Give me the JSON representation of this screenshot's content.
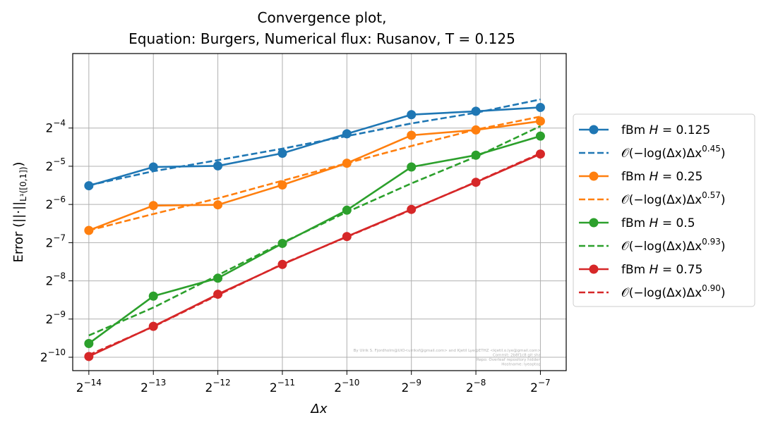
{
  "chart_data": {
    "type": "line",
    "title_line1": "Convergence plot,",
    "title_line2": "Equation: Burgers, Numerical flux: Rusanov, T = 0.125",
    "xlabel": "Δx",
    "ylabel": "Error (||·||",
    "ylabel_sub": "L¹([0,1])",
    "ylabel_close": ")",
    "xscale": "log2",
    "yscale": "log2",
    "xlim_log2": [
      -14.25,
      -6.6
    ],
    "ylim_log2": [
      -10.35,
      -2.05
    ],
    "x_ticks": [
      {
        "base": "2",
        "exp": "−14",
        "log2": -14
      },
      {
        "base": "2",
        "exp": "−13",
        "log2": -13
      },
      {
        "base": "2",
        "exp": "−12",
        "log2": -12
      },
      {
        "base": "2",
        "exp": "−11",
        "log2": -11
      },
      {
        "base": "2",
        "exp": "−10",
        "log2": -10
      },
      {
        "base": "2",
        "exp": "−9",
        "log2": -9
      },
      {
        "base": "2",
        "exp": "−8",
        "log2": -8
      },
      {
        "base": "2",
        "exp": "−7",
        "log2": -7
      }
    ],
    "y_ticks": [
      {
        "base": "2",
        "exp": "−4",
        "log2": -4
      },
      {
        "base": "2",
        "exp": "−5",
        "log2": -5
      },
      {
        "base": "2",
        "exp": "−6",
        "log2": -6
      },
      {
        "base": "2",
        "exp": "−7",
        "log2": -7
      },
      {
        "base": "2",
        "exp": "−8",
        "log2": -8
      },
      {
        "base": "2",
        "exp": "−9",
        "log2": -9
      },
      {
        "base": "2",
        "exp": "−10",
        "log2": -10
      }
    ],
    "x_log2": [
      -14,
      -13,
      -12,
      -11,
      -10,
      -9,
      -8,
      -7
    ],
    "grid": true,
    "legend_position": "outside-right",
    "series": [
      {
        "name": "fBm H = 0.125",
        "legend_prefix": "fBm ",
        "legend_var": "H",
        "legend_value": " = 0.125",
        "color": "#1f77b4",
        "log2_error": [
          -5.51,
          -5.02,
          -4.99,
          -4.66,
          -4.15,
          -3.65,
          -3.56,
          -3.46
        ],
        "fit_log2": [
          -5.5,
          -5.13,
          -4.84,
          -4.54,
          -4.21,
          -3.88,
          -3.6,
          -3.25
        ],
        "fit_label_prefix": "𝒪(−log(Δx)Δx",
        "fit_label_exp": "0.45",
        "fit_label_suffix": ")"
      },
      {
        "name": "fBm H = 0.25",
        "legend_prefix": "fBm ",
        "legend_var": "H",
        "legend_value": " = 0.25",
        "color": "#ff7f0e",
        "log2_error": [
          -6.68,
          -6.03,
          -6.01,
          -5.49,
          -4.92,
          -4.19,
          -4.05,
          -3.82
        ],
        "fit_log2": [
          -6.68,
          -6.25,
          -5.84,
          -5.38,
          -4.92,
          -4.47,
          -4.04,
          -3.7
        ],
        "fit_label_prefix": "𝒪(−log(Δx)Δx",
        "fit_label_exp": "0.57",
        "fit_label_suffix": ")"
      },
      {
        "name": "fBm H = 0.5",
        "legend_prefix": "fBm ",
        "legend_var": "H",
        "legend_value": " = 0.5",
        "color": "#2ca02c",
        "log2_error": [
          -9.64,
          -8.4,
          -7.93,
          -7.02,
          -6.15,
          -5.02,
          -4.71,
          -4.21
        ],
        "fit_log2": [
          -9.43,
          -8.7,
          -7.85,
          -7.0,
          -6.2,
          -5.45,
          -4.75,
          -3.95
        ],
        "fit_label_prefix": "𝒪(−log(Δx)Δx",
        "fit_label_exp": "0.93",
        "fit_label_suffix": ")"
      },
      {
        "name": "fBm H = 0.75",
        "legend_prefix": "fBm ",
        "legend_var": "H",
        "legend_value": " = 0.75",
        "color": "#d62728",
        "log2_error": [
          -9.98,
          -9.19,
          -8.35,
          -7.57,
          -6.84,
          -6.13,
          -5.42,
          -4.68
        ],
        "fit_log2": [
          -9.94,
          -9.2,
          -8.37,
          -7.56,
          -6.85,
          -6.14,
          -5.41,
          -4.66
        ],
        "fit_label_prefix": "𝒪(−log(Δx)Δx",
        "fit_label_exp": "0.90",
        "fit_label_suffix": ")"
      }
    ],
    "watermark_lines": [
      "By Ulrik S. Fjordholm@UiO<ulriksf@gmail.com> and Kjetil Lye@ETHZ <kjetil.o.lye@gmail.com>",
      "Commit: 2b8f1c8 git sha",
      "Repo: Overleaf repository hidden",
      "Hostname: lyeaptop"
    ]
  }
}
